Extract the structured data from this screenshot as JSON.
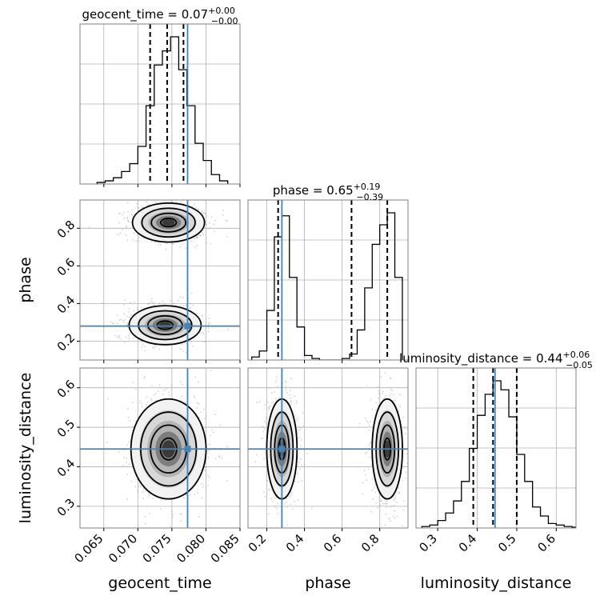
{
  "chart_data": {
    "type": "corner",
    "parameters": [
      "geocent_time",
      "phase",
      "luminosity_distance"
    ],
    "axis_labels": {
      "geocent_time": "geocent_time",
      "phase": "phase",
      "luminosity_distance": "luminosity_distance"
    },
    "ranges": {
      "geocent_time": [
        0.0615,
        0.085
      ],
      "phase": [
        0.1,
        0.95
      ],
      "luminosity_distance": [
        0.245,
        0.65
      ]
    },
    "ticks": {
      "geocent_time": [
        0.065,
        0.07,
        0.075,
        0.08,
        0.085
      ],
      "phase": [
        0.2,
        0.4,
        0.6,
        0.8
      ],
      "luminosity_distance": [
        0.3,
        0.4,
        0.5,
        0.6
      ]
    },
    "tick_labels": {
      "geocent_time": [
        "0.065",
        "0.070",
        "0.075",
        "0.080",
        "0.085"
      ],
      "phase": [
        "0.2",
        "0.4",
        "0.6",
        "0.8"
      ],
      "luminosity_distance": [
        "0.3",
        "0.4",
        "0.5",
        "0.6"
      ]
    },
    "titles": {
      "geocent_time": {
        "name": "geocent_time",
        "median": "0.07",
        "plus": "+0.00",
        "minus": "−0.00"
      },
      "phase": {
        "name": "phase",
        "median": "0.65",
        "plus": "+0.19",
        "minus": "−0.39"
      },
      "luminosity_distance": {
        "name": "luminosity_distance",
        "median": "0.44",
        "plus": "+0.06",
        "minus": "−0.05"
      }
    },
    "truths": {
      "geocent_time": 0.0773,
      "phase": 0.28,
      "luminosity_distance": 0.445
    },
    "quantiles": {
      "geocent_time": [
        0.0718,
        0.0743,
        0.0767
      ],
      "phase": [
        0.26,
        0.65,
        0.84
      ],
      "luminosity_distance": [
        0.39,
        0.44,
        0.5
      ]
    },
    "histograms": {
      "geocent_time": {
        "edges": [
          0.064,
          0.0652,
          0.0664,
          0.0676,
          0.0688,
          0.07,
          0.0712,
          0.0724,
          0.0736,
          0.0748,
          0.076,
          0.0772,
          0.0784,
          0.0796,
          0.0808,
          0.082,
          0.0832
        ],
        "counts": [
          0.01,
          0.02,
          0.04,
          0.08,
          0.13,
          0.24,
          0.5,
          0.76,
          0.85,
          0.94,
          0.73,
          0.5,
          0.26,
          0.15,
          0.06,
          0.02
        ]
      },
      "phase": {
        "edges": [
          0.12,
          0.16,
          0.2,
          0.24,
          0.28,
          0.32,
          0.36,
          0.4,
          0.44,
          0.48,
          0.52,
          0.56,
          0.6,
          0.64,
          0.68,
          0.72,
          0.76,
          0.8,
          0.84,
          0.88,
          0.92
        ],
        "counts": [
          0.02,
          0.06,
          0.33,
          0.82,
          0.96,
          0.55,
          0.22,
          0.03,
          0.01,
          0.0,
          0.0,
          0.0,
          0.01,
          0.04,
          0.2,
          0.48,
          0.77,
          0.9,
          0.98,
          0.55
        ]
      },
      "luminosity_distance": {
        "edges": [
          0.26,
          0.28,
          0.3,
          0.32,
          0.34,
          0.36,
          0.38,
          0.4,
          0.42,
          0.44,
          0.46,
          0.48,
          0.5,
          0.52,
          0.54,
          0.56,
          0.58,
          0.6,
          0.62,
          0.64,
          0.65
        ],
        "counts": [
          0.01,
          0.02,
          0.05,
          0.1,
          0.18,
          0.31,
          0.53,
          0.75,
          0.89,
          0.98,
          0.92,
          0.74,
          0.49,
          0.31,
          0.14,
          0.08,
          0.03,
          0.02,
          0.01,
          0.005
        ]
      }
    },
    "modes_2d": {
      "phase_vs_geocent_time": [
        {
          "x": 0.0745,
          "y": 0.83,
          "sx": 0.0023,
          "sy": 0.045
        },
        {
          "x": 0.074,
          "y": 0.285,
          "sx": 0.0023,
          "sy": 0.045
        }
      ],
      "luminosity_distance_vs_geocent_time": [
        {
          "x": 0.0745,
          "y": 0.445,
          "sx": 0.0024,
          "sy": 0.055
        }
      ],
      "luminosity_distance_vs_phase": [
        {
          "x": 0.28,
          "y": 0.445,
          "sx": 0.035,
          "sy": 0.055
        },
        {
          "x": 0.84,
          "y": 0.445,
          "sx": 0.035,
          "sy": 0.055
        }
      ]
    },
    "grid": true
  }
}
